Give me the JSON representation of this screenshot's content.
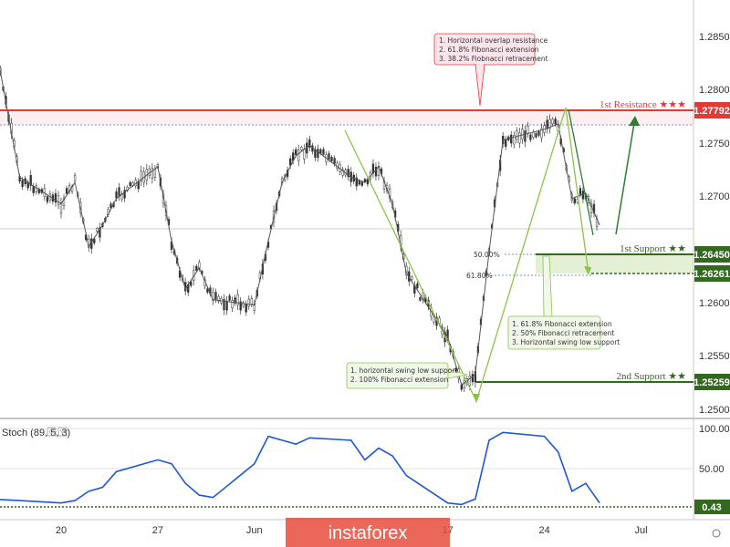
{
  "chart_data": {
    "type": "line",
    "series": [
      {
        "x": [
          "2019-05-15",
          "2019-05-16",
          "2019-05-17",
          "2019-05-20",
          "2019-05-21",
          "2019-05-22",
          "2019-05-23",
          "2019-05-24",
          "2019-05-27",
          "2019-05-28",
          "2019-05-29",
          "2019-05-30",
          "2019-05-31",
          "2019-06-03",
          "2019-06-04",
          "2019-06-05",
          "2019-06-06",
          "2019-06-07",
          "2019-06-10",
          "2019-06-11",
          "2019-06-12",
          "2019-06-13",
          "2019-06-14",
          "2019-06-17",
          "2019-06-18",
          "2019-06-19",
          "2019-06-20",
          "2019-06-21",
          "2019-06-24",
          "2019-06-25",
          "2019-06-26",
          "2019-06-27",
          "2019-06-28"
        ],
        "values": [
          1.2868,
          1.2795,
          1.2725,
          1.27,
          1.272,
          1.266,
          1.268,
          1.2705,
          1.2735,
          1.2665,
          1.262,
          1.264,
          1.261,
          1.2605,
          1.2665,
          1.272,
          1.2745,
          1.2755,
          1.2725,
          1.272,
          1.2735,
          1.27,
          1.2635,
          1.2575,
          1.253,
          1.254,
          1.2655,
          1.276,
          1.277,
          1.2775,
          1.2705,
          1.271,
          1.268
        ]
      },
      {
        "name": "Stoch (89, 5, 3)",
        "x": [
          "2019-05-15",
          "2019-05-17",
          "2019-05-20",
          "2019-05-21",
          "2019-05-22",
          "2019-05-23",
          "2019-05-24",
          "2019-05-27",
          "2019-05-28",
          "2019-05-29",
          "2019-05-30",
          "2019-05-31",
          "2019-06-03",
          "2019-06-04",
          "2019-06-05",
          "2019-06-06",
          "2019-06-07",
          "2019-06-10",
          "2019-06-11",
          "2019-06-12",
          "2019-06-13",
          "2019-06-14",
          "2019-06-17",
          "2019-06-18",
          "2019-06-19",
          "2019-06-20",
          "2019-06-21",
          "2019-06-24",
          "2019-06-25",
          "2019-06-26",
          "2019-06-27",
          "2019-06-28"
        ],
        "values": [
          10,
          8,
          5,
          8,
          20,
          25,
          45,
          60,
          55,
          30,
          15,
          12,
          55,
          90,
          85,
          80,
          88,
          85,
          60,
          75,
          65,
          40,
          5,
          3,
          10,
          85,
          95,
          90,
          70,
          20,
          30,
          5
        ]
      }
    ],
    "levels": [
      {
        "label": "1st Resistance ★★★",
        "value": "1.27792",
        "price": 1.27792,
        "color": "#e53935"
      },
      {
        "label": "1st Support ★★",
        "value": "1.26450",
        "price": 1.2645,
        "color": "#33691e"
      },
      {
        "value": "1.26261",
        "price": 1.26261,
        "color": "#33691e"
      },
      {
        "label": "2nd Support ★★",
        "value": "1.25259",
        "price": 1.25259,
        "color": "#33691e"
      }
    ],
    "annotations": [
      {
        "lines": [
          "1. Horizontal overlap resistance",
          "2. 61.8% Fibonacci extension",
          "3. 38.2% Fiobnacci retracement"
        ]
      },
      {
        "lines": [
          "1. 61.8% Fibonacci extension",
          "2. 50% Fibonacci retracement",
          "3. Horizontal swing low support"
        ]
      },
      {
        "lines": [
          "1. horizontal swing low support",
          "2. 100% Fibonacci extension"
        ]
      }
    ],
    "fib_labels": [
      "50.00%",
      "61.80%"
    ],
    "y_ticks": [
      "1.28500",
      "1.28000",
      "1.27500",
      "1.27000",
      "1.26000",
      "1.25500",
      "1.25000"
    ],
    "ylim": [
      1.2475,
      1.2885
    ],
    "x_ticks": [
      {
        "label": "20",
        "date": "2019-05-20"
      },
      {
        "label": "27",
        "date": "2019-05-27"
      },
      {
        "label": "Jun",
        "date": "2019-06-03"
      },
      {
        "label": "17",
        "date": "2019-06-17"
      },
      {
        "label": "24",
        "date": "2019-06-24"
      },
      {
        "label": "Jul",
        "date": "2019-07-01"
      }
    ],
    "stoch_ticks": [
      "100.00",
      "50.00"
    ],
    "stoch_value": "0.43"
  },
  "watermark": "instaforex",
  "icons": [
    "settings-icon",
    "chevron-icon"
  ]
}
